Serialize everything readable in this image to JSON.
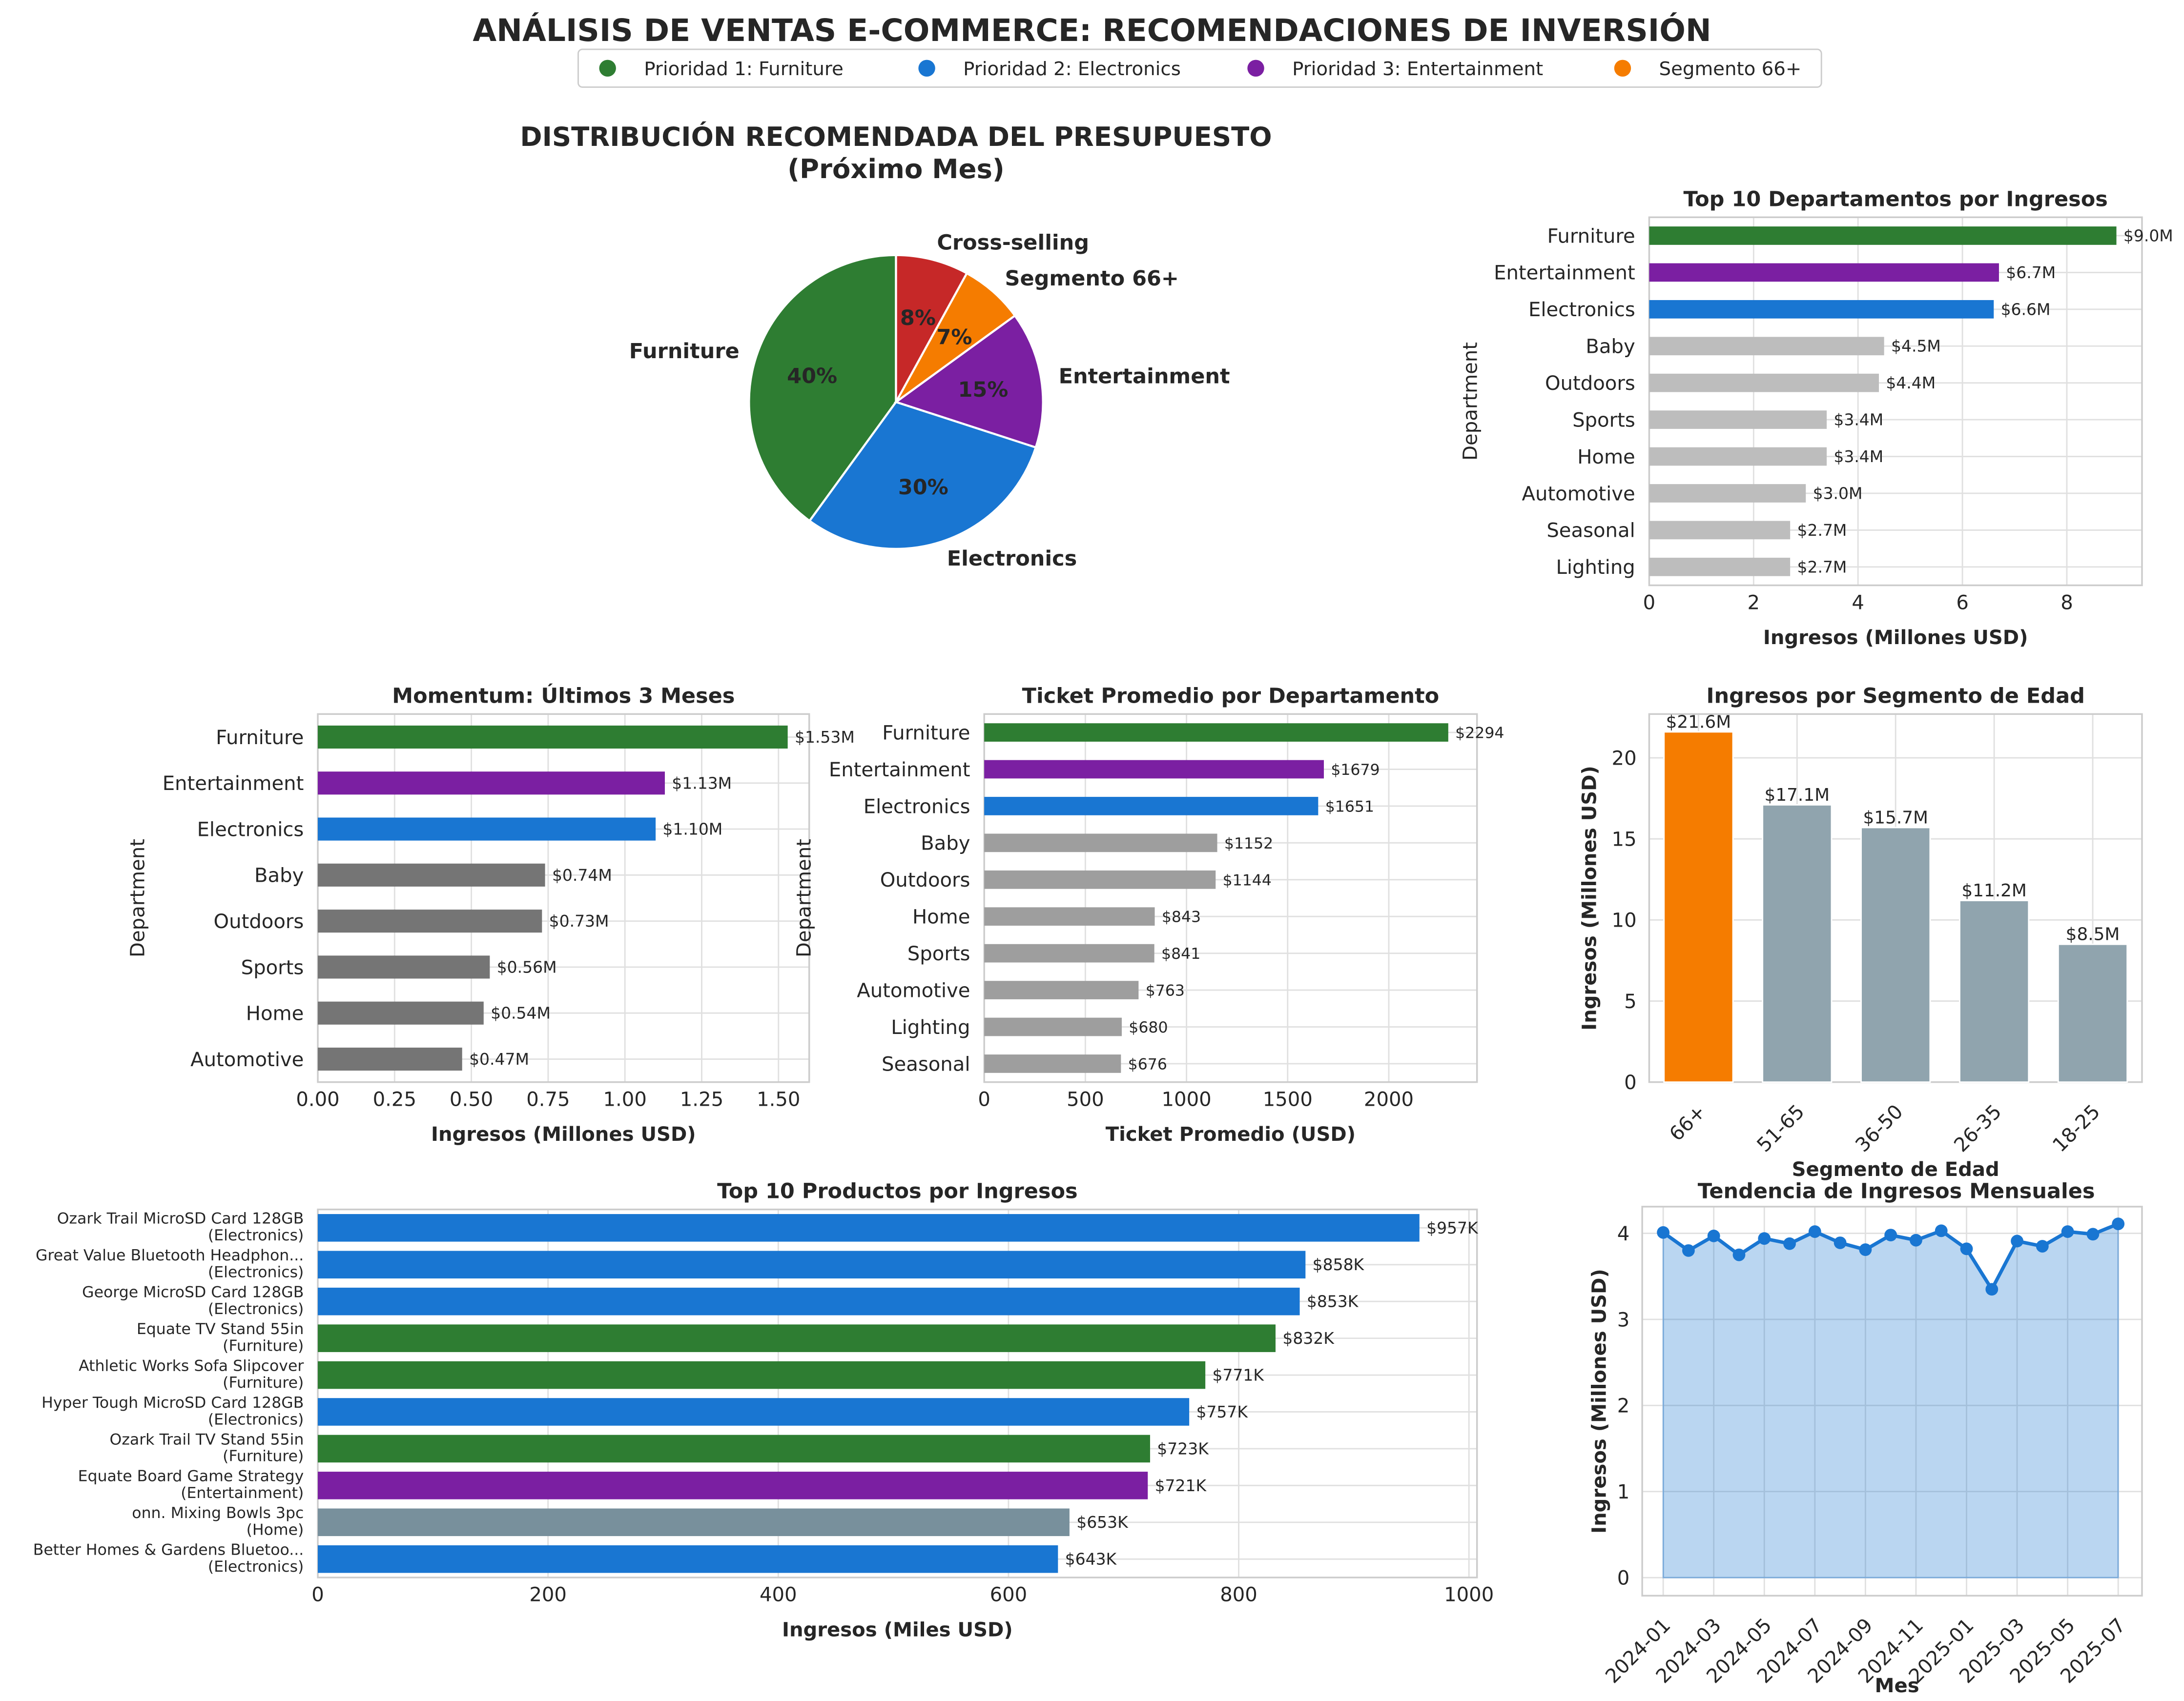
{
  "title": "ANÁLISIS DE VENTAS E-COMMERCE: RECOMENDACIONES DE INVERSIÓN",
  "legend": [
    {
      "label": "Prioridad 1: Furniture",
      "color": "#2e7d32"
    },
    {
      "label": "Prioridad 2: Electronics",
      "color": "#1976d2"
    },
    {
      "label": "Prioridad 3: Entertainment",
      "color": "#7b1fa2"
    },
    {
      "label": "Segmento 66+",
      "color": "#f57c00"
    }
  ],
  "chart_data": [
    {
      "type": "pie",
      "title": [
        "DISTRIBUCIÓN RECOMENDADA DEL PRESUPUESTO",
        "(Próximo Mes)"
      ],
      "labels": [
        "Furniture",
        "Electronics",
        "Entertainment",
        "Segmento 66+",
        "Cross-selling"
      ],
      "values": [
        40,
        30,
        15,
        7,
        8
      ],
      "pct_labels": [
        "40%",
        "30%",
        "15%",
        "7%",
        "8%"
      ],
      "colors": [
        "#2e7d32",
        "#1976d2",
        "#7b1fa2",
        "#f57c00",
        "#c62828"
      ]
    },
    {
      "type": "bar",
      "orientation": "horizontal",
      "title": "Top 10 Departamentos por Ingresos",
      "xlabel": "Ingresos (Millones USD)",
      "ylabel": "Department",
      "categories": [
        "Furniture",
        "Entertainment",
        "Electronics",
        "Baby",
        "Outdoors",
        "Sports",
        "Home",
        "Automotive",
        "Seasonal",
        "Lighting"
      ],
      "values": [
        8.95,
        6.7,
        6.6,
        4.5,
        4.4,
        3.4,
        3.4,
        3.0,
        2.7,
        2.7
      ],
      "labels": [
        "$9.0M",
        "$6.7M",
        "$6.6M",
        "$4.5M",
        "$4.4M",
        "$3.4M",
        "$3.4M",
        "$3.0M",
        "$2.7M",
        "$2.7M"
      ],
      "colors": [
        "#2e7d32",
        "#7b1fa2",
        "#1976d2",
        "#bdbdbd",
        "#bdbdbd",
        "#bdbdbd",
        "#bdbdbd",
        "#bdbdbd",
        "#bdbdbd",
        "#bdbdbd"
      ],
      "xlim": [
        0,
        9.44
      ],
      "xticks": [
        0,
        2,
        4,
        6,
        8
      ],
      "xtick_labels": [
        "0",
        "2",
        "4",
        "6",
        "8"
      ],
      "grid": true
    },
    {
      "type": "bar",
      "orientation": "horizontal",
      "title": "Momentum: Últimos 3 Meses",
      "xlabel": "Ingresos (Millones USD)",
      "ylabel": "Department",
      "categories": [
        "Furniture",
        "Entertainment",
        "Electronics",
        "Baby",
        "Outdoors",
        "Sports",
        "Home",
        "Automotive"
      ],
      "values": [
        1.53,
        1.13,
        1.1,
        0.74,
        0.73,
        0.56,
        0.54,
        0.47
      ],
      "labels": [
        "$1.53M",
        "$1.13M",
        "$1.10M",
        "$0.74M",
        "$0.73M",
        "$0.56M",
        "$0.54M",
        "$0.47M"
      ],
      "colors": [
        "#2e7d32",
        "#7b1fa2",
        "#1976d2",
        "#757575",
        "#757575",
        "#757575",
        "#757575",
        "#757575"
      ],
      "xlim": [
        0,
        1.6
      ],
      "xticks": [
        0,
        0.25,
        0.5,
        0.75,
        1.0,
        1.25,
        1.5
      ],
      "xtick_labels": [
        "0.00",
        "0.25",
        "0.50",
        "0.75",
        "1.00",
        "1.25",
        "1.50"
      ],
      "grid": true
    },
    {
      "type": "bar",
      "orientation": "horizontal",
      "title": "Ticket Promedio por Departamento",
      "xlabel": "Ticket Promedio (USD)",
      "ylabel": "Department",
      "categories": [
        "Furniture",
        "Entertainment",
        "Electronics",
        "Baby",
        "Outdoors",
        "Home",
        "Sports",
        "Automotive",
        "Lighting",
        "Seasonal"
      ],
      "values": [
        2294,
        1679,
        1651,
        1152,
        1144,
        843,
        841,
        763,
        680,
        676
      ],
      "labels": [
        "$2294",
        "$1679",
        "$1651",
        "$1152",
        "$1144",
        "$843",
        "$841",
        "$763",
        "$680",
        "$676"
      ],
      "colors": [
        "#2e7d32",
        "#7b1fa2",
        "#1976d2",
        "#9e9e9e",
        "#9e9e9e",
        "#9e9e9e",
        "#9e9e9e",
        "#9e9e9e",
        "#9e9e9e",
        "#9e9e9e"
      ],
      "xlim": [
        0,
        2436
      ],
      "xticks": [
        0,
        500,
        1000,
        1500,
        2000
      ],
      "xtick_labels": [
        "0",
        "500",
        "1000",
        "1500",
        "2000"
      ],
      "grid": true
    },
    {
      "type": "bar",
      "orientation": "vertical",
      "title": "Ingresos por Segmento de Edad",
      "xlabel": "Segmento de Edad",
      "ylabel": "Ingresos (Millones USD)",
      "categories": [
        "66+",
        "51-65",
        "36-50",
        "26-35",
        "18-25"
      ],
      "values": [
        21.6,
        17.1,
        15.7,
        11.2,
        8.5
      ],
      "labels": [
        "$21.6M",
        "$17.1M",
        "$15.7M",
        "$11.2M",
        "$8.5M"
      ],
      "colors": [
        "#f57c00",
        "#90a4ae",
        "#90a4ae",
        "#90a4ae",
        "#90a4ae"
      ],
      "ylim": [
        0,
        22.7
      ],
      "yticks": [
        0,
        5,
        10,
        15,
        20
      ],
      "ytick_labels": [
        "0",
        "5",
        "10",
        "15",
        "20"
      ],
      "grid": true
    },
    {
      "type": "bar",
      "orientation": "horizontal",
      "title": "Top 10 Productos por Ingresos",
      "xlabel": "Ingresos (Miles USD)",
      "categories": [
        "Ozark Trail MicroSD Card 128GB",
        "Great Value Bluetooth Headphon...",
        "George MicroSD Card 128GB",
        "Equate TV Stand 55in",
        "Athletic Works Sofa Slipcover",
        "Hyper Tough MicroSD Card 128GB",
        "Ozark Trail TV Stand 55in",
        "Equate Board Game Strategy",
        "onn. Mixing Bowls 3pc",
        "Better Homes & Gardens Bluetoo..."
      ],
      "departments": [
        "(Electronics)",
        "(Electronics)",
        "(Electronics)",
        "(Furniture)",
        "(Furniture)",
        "(Electronics)",
        "(Furniture)",
        "(Entertainment)",
        "(Home)",
        "(Electronics)"
      ],
      "values": [
        957,
        858,
        853,
        832,
        771,
        757,
        723,
        721,
        653,
        643
      ],
      "labels": [
        "$957K",
        "$858K",
        "$853K",
        "$832K",
        "$771K",
        "$757K",
        "$723K",
        "$721K",
        "$653K",
        "$643K"
      ],
      "colors": [
        "#1976d2",
        "#1976d2",
        "#1976d2",
        "#2e7d32",
        "#2e7d32",
        "#1976d2",
        "#2e7d32",
        "#7b1fa2",
        "#78909c",
        "#1976d2"
      ],
      "xlim": [
        0,
        1007
      ],
      "xticks": [
        0,
        200,
        400,
        600,
        800,
        1000
      ],
      "xtick_labels": [
        "0",
        "200",
        "400",
        "600",
        "800",
        "1000"
      ],
      "grid": true
    },
    {
      "type": "area",
      "title": "Tendencia de Ingresos Mensuales",
      "xlabel": "Mes",
      "ylabel": "Ingresos (Millones USD)",
      "x": [
        "2024-01",
        "2024-02",
        "2024-03",
        "2024-04",
        "2024-05",
        "2024-06",
        "2024-07",
        "2024-08",
        "2024-09",
        "2024-10",
        "2024-11",
        "2024-12",
        "2025-01",
        "2025-02",
        "2025-03",
        "2025-04",
        "2025-05",
        "2025-06",
        "2025-07"
      ],
      "values": [
        4.01,
        3.8,
        3.97,
        3.75,
        3.94,
        3.88,
        4.02,
        3.89,
        3.81,
        3.98,
        3.92,
        4.03,
        3.82,
        3.35,
        3.91,
        3.85,
        4.02,
        3.99,
        4.11
      ],
      "xtick_labels": [
        "2024-01",
        "2024-03",
        "2024-05",
        "2024-07",
        "2024-09",
        "2024-11",
        "2025-01",
        "2025-03",
        "2025-05",
        "2025-07"
      ],
      "color": "#1976d2",
      "ylim": [
        -0.21,
        4.31
      ],
      "yticks": [
        0,
        1,
        2,
        3,
        4
      ],
      "ytick_labels": [
        "0",
        "1",
        "2",
        "3",
        "4"
      ],
      "grid": true
    }
  ]
}
